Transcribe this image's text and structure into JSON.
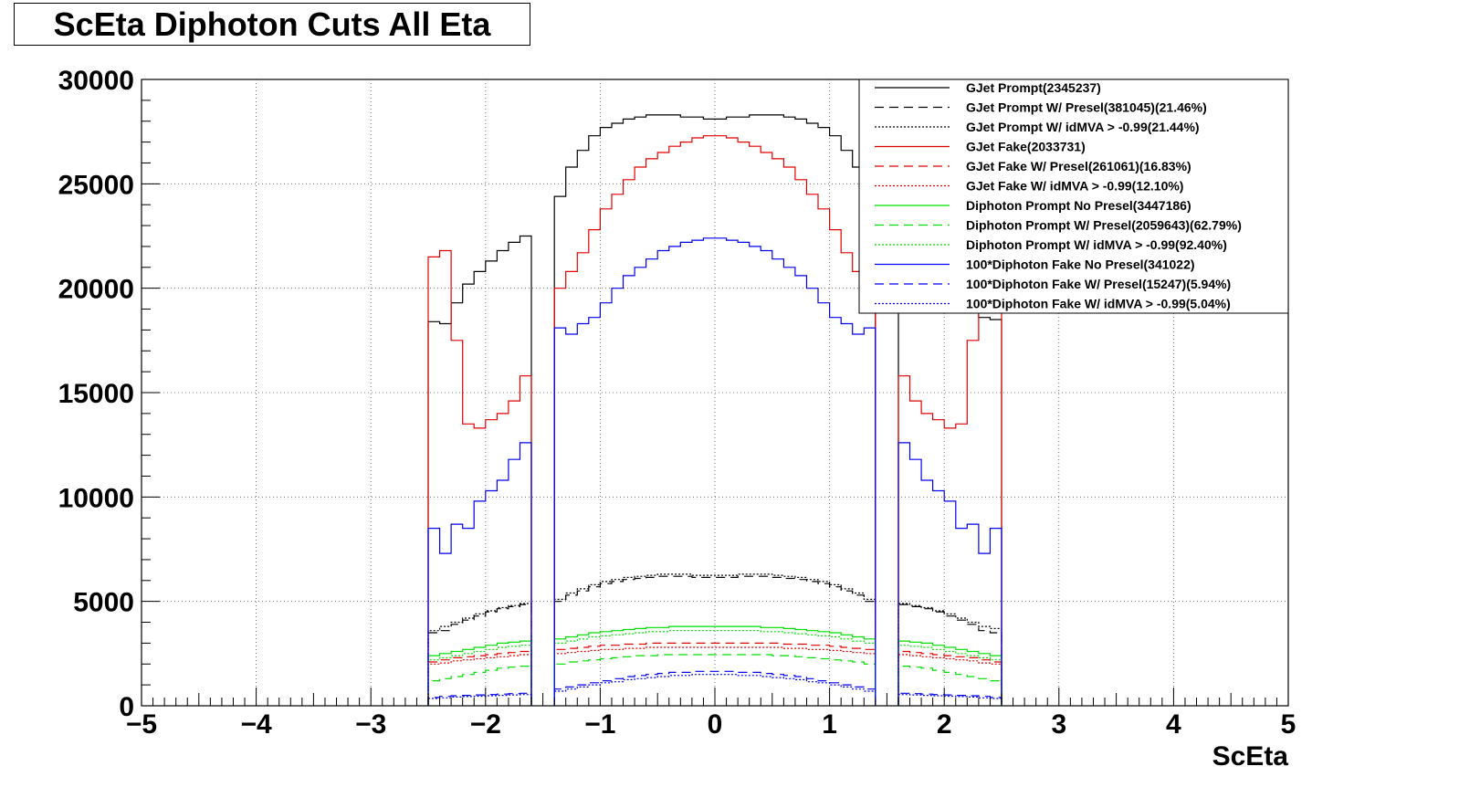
{
  "title": "ScEta Diphoton Cuts All Eta",
  "chart_data": {
    "type": "line",
    "title": "ScEta Diphoton Cuts All Eta",
    "xlabel": "ScEta",
    "ylabel": "",
    "xlim": [
      -5,
      5
    ],
    "ylim": [
      0,
      30000
    ],
    "x_ticks": [
      "−5",
      "−4",
      "−3",
      "−2",
      "−1",
      "0",
      "1",
      "2",
      "3",
      "4",
      "5"
    ],
    "y_ticks": [
      "0",
      "5000",
      "10000",
      "15000",
      "20000",
      "25000",
      "30000"
    ],
    "grid": true,
    "legend_position": "top-right",
    "x": [
      -2.45,
      -2.35,
      -2.25,
      -2.15,
      -2.05,
      -1.95,
      -1.85,
      -1.75,
      -1.65,
      -1.35,
      -1.25,
      -1.15,
      -1.05,
      -0.95,
      -0.85,
      -0.75,
      -0.65,
      -0.55,
      -0.45,
      -0.35,
      -0.25,
      -0.15,
      -0.05,
      0.05,
      0.15,
      0.25,
      0.35,
      0.45,
      0.55,
      0.65,
      0.75,
      0.85,
      0.95,
      1.05,
      1.15,
      1.25,
      1.35,
      1.65,
      1.75,
      1.85,
      1.95,
      2.05,
      2.15,
      2.25,
      2.35,
      2.45
    ],
    "series": [
      {
        "name": "GJet Prompt(2345237)",
        "color": "#000000",
        "dash": "solid",
        "values": [
          18400,
          18300,
          19300,
          20200,
          20800,
          21300,
          21800,
          22200,
          22500,
          24400,
          25800,
          26600,
          27300,
          27700,
          27900,
          28100,
          28200,
          28300,
          28300,
          28300,
          28200,
          28200,
          28100,
          28100,
          28200,
          28200,
          28300,
          28300,
          28300,
          28200,
          28100,
          27900,
          27700,
          27300,
          26600,
          25800,
          24400,
          22500,
          22200,
          21800,
          21300,
          20800,
          20200,
          19300,
          18600,
          18500
        ]
      },
      {
        "name": "GJet Prompt W/ Presel(381045)(21.46%)",
        "color": "#000000",
        "dash": "10,6",
        "values": [
          3500,
          3600,
          3900,
          4100,
          4300,
          4500,
          4650,
          4750,
          4850,
          5000,
          5300,
          5500,
          5700,
          5850,
          5950,
          6050,
          6100,
          6150,
          6200,
          6200,
          6200,
          6150,
          6150,
          6150,
          6150,
          6200,
          6200,
          6200,
          6150,
          6100,
          6050,
          5950,
          5850,
          5700,
          5500,
          5300,
          5000,
          4850,
          4750,
          4650,
          4500,
          4300,
          4100,
          3900,
          3600,
          3500
        ]
      },
      {
        "name": "GJet Prompt W/ idMVA > -0.99(21.44%)",
        "color": "#000000",
        "dash": "2,2",
        "values": [
          3600,
          3800,
          4000,
          4200,
          4400,
          4550,
          4700,
          4800,
          4900,
          5100,
          5400,
          5600,
          5800,
          5950,
          6050,
          6150,
          6200,
          6250,
          6300,
          6300,
          6300,
          6250,
          6250,
          6250,
          6250,
          6300,
          6300,
          6300,
          6250,
          6200,
          6150,
          6050,
          5950,
          5800,
          5600,
          5400,
          5100,
          4900,
          4800,
          4700,
          4550,
          4400,
          4200,
          4000,
          3800,
          3700
        ]
      },
      {
        "name": "GJet Fake(2033731)",
        "color": "#e00000",
        "dash": "solid",
        "values": [
          21500,
          21800,
          17500,
          13500,
          13300,
          13700,
          14000,
          14600,
          15800,
          20000,
          20800,
          21700,
          22800,
          23800,
          24500,
          25200,
          25800,
          26200,
          26500,
          26800,
          27000,
          27200,
          27300,
          27300,
          27200,
          27000,
          26800,
          26500,
          26200,
          25800,
          25200,
          24500,
          23800,
          22800,
          21700,
          20800,
          20000,
          15800,
          14600,
          14000,
          13700,
          13300,
          13500,
          17500,
          21000,
          20500
        ]
      },
      {
        "name": "GJet Fake W/ Presel(261061)(16.83%)",
        "color": "#e00000",
        "dash": "10,6",
        "values": [
          2100,
          2200,
          2300,
          2350,
          2400,
          2450,
          2500,
          2550,
          2600,
          2700,
          2750,
          2800,
          2850,
          2900,
          2900,
          2950,
          2950,
          3000,
          3000,
          3000,
          3000,
          3000,
          3000,
          3000,
          3000,
          3000,
          3000,
          3000,
          3000,
          2950,
          2950,
          2900,
          2900,
          2850,
          2800,
          2750,
          2700,
          2600,
          2550,
          2500,
          2450,
          2400,
          2350,
          2300,
          2200,
          2100
        ]
      },
      {
        "name": "GJet Fake W/ idMVA > -0.99(12.10%)",
        "color": "#e00000",
        "dash": "2,2",
        "values": [
          2000,
          2050,
          2150,
          2200,
          2250,
          2300,
          2350,
          2400,
          2450,
          2500,
          2550,
          2600,
          2650,
          2700,
          2700,
          2750,
          2750,
          2800,
          2800,
          2800,
          2800,
          2800,
          2800,
          2800,
          2800,
          2800,
          2800,
          2800,
          2800,
          2750,
          2750,
          2700,
          2700,
          2650,
          2600,
          2550,
          2500,
          2450,
          2400,
          2350,
          2300,
          2250,
          2200,
          2150,
          2050,
          2000
        ]
      },
      {
        "name": "Diphoton Prompt No Presel(3447186)",
        "color": "#00dd00",
        "dash": "solid",
        "values": [
          2400,
          2500,
          2600,
          2700,
          2800,
          2900,
          3000,
          3050,
          3100,
          3200,
          3300,
          3400,
          3500,
          3550,
          3600,
          3650,
          3700,
          3750,
          3750,
          3800,
          3800,
          3800,
          3800,
          3800,
          3800,
          3800,
          3800,
          3750,
          3750,
          3700,
          3650,
          3600,
          3550,
          3500,
          3400,
          3300,
          3200,
          3100,
          3050,
          3000,
          2900,
          2800,
          2700,
          2600,
          2500,
          2400
        ]
      },
      {
        "name": "Diphoton Prompt W/ Presel(2059643)(62.79%)",
        "color": "#00dd00",
        "dash": "10,6",
        "values": [
          1200,
          1300,
          1400,
          1500,
          1600,
          1700,
          1800,
          1850,
          1900,
          2000,
          2100,
          2150,
          2200,
          2250,
          2300,
          2350,
          2400,
          2400,
          2450,
          2450,
          2450,
          2450,
          2450,
          2450,
          2450,
          2450,
          2450,
          2450,
          2400,
          2400,
          2350,
          2300,
          2250,
          2200,
          2150,
          2100,
          2000,
          1900,
          1850,
          1800,
          1700,
          1600,
          1500,
          1400,
          1300,
          1200
        ]
      },
      {
        "name": "Diphoton Prompt W/ idMVA > -0.99(92.40%)",
        "color": "#00dd00",
        "dash": "2,2",
        "values": [
          2200,
          2300,
          2400,
          2500,
          2600,
          2700,
          2800,
          2850,
          2900,
          3000,
          3100,
          3200,
          3300,
          3350,
          3400,
          3450,
          3500,
          3550,
          3550,
          3600,
          3600,
          3600,
          3600,
          3600,
          3600,
          3600,
          3600,
          3550,
          3550,
          3500,
          3450,
          3400,
          3350,
          3300,
          3200,
          3100,
          3000,
          2900,
          2850,
          2800,
          2700,
          2600,
          2500,
          2400,
          2300,
          2200
        ]
      },
      {
        "name": "100*Diphoton Fake No Presel(341022)",
        "color": "#0000ee",
        "dash": "solid",
        "values": [
          8500,
          7300,
          8700,
          8500,
          9800,
          10300,
          10800,
          11800,
          12600,
          18100,
          17800,
          18300,
          18600,
          19300,
          20000,
          20600,
          21000,
          21400,
          21800,
          22000,
          22200,
          22300,
          22400,
          22400,
          22300,
          22200,
          22000,
          21800,
          21400,
          21000,
          20600,
          20000,
          19300,
          18600,
          18300,
          17800,
          18100,
          12600,
          11800,
          10800,
          10300,
          9800,
          8500,
          8700,
          7300,
          8500
        ]
      },
      {
        "name": "100*Diphoton Fake W/ Presel(15247)(5.94%)",
        "color": "#0000ee",
        "dash": "10,6",
        "values": [
          400,
          450,
          480,
          500,
          520,
          540,
          560,
          580,
          600,
          800,
          900,
          1000,
          1100,
          1200,
          1300,
          1400,
          1450,
          1500,
          1550,
          1600,
          1600,
          1650,
          1650,
          1650,
          1650,
          1600,
          1600,
          1550,
          1500,
          1450,
          1400,
          1300,
          1200,
          1100,
          1000,
          900,
          800,
          600,
          580,
          560,
          540,
          520,
          500,
          480,
          450,
          400
        ]
      },
      {
        "name": "100*Diphoton Fake W/ idMVA > -0.99(5.04%)",
        "color": "#0000ee",
        "dash": "2,2",
        "values": [
          350,
          380,
          420,
          440,
          460,
          480,
          500,
          520,
          540,
          700,
          800,
          900,
          1000,
          1100,
          1150,
          1250,
          1300,
          1350,
          1400,
          1450,
          1450,
          1500,
          1500,
          1500,
          1500,
          1450,
          1450,
          1400,
          1350,
          1300,
          1250,
          1150,
          1100,
          1000,
          900,
          800,
          700,
          540,
          520,
          500,
          480,
          460,
          440,
          420,
          380,
          350
        ]
      }
    ]
  }
}
